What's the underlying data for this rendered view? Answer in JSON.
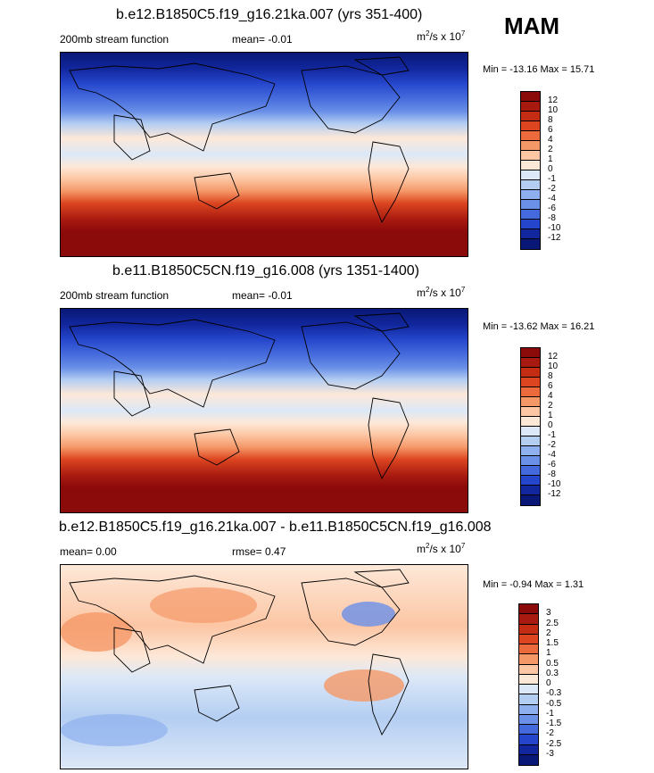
{
  "season": "MAM",
  "panels": [
    {
      "title": "b.e12.B1850C5.f19_g16.21ka.007 (yrs 351-400)",
      "left": "200mb stream function",
      "center": "mean=  -0.01",
      "units_base": "m",
      "units_mid": "/s x 10",
      "units_exp2": "2",
      "units_exp": "7",
      "minmax": "Min = -13.16 Max =  15.71",
      "labels": [
        "12",
        "10",
        "8",
        "6",
        "4",
        "2",
        "1",
        "0",
        "-1",
        "-2",
        "-4",
        "-6",
        "-8",
        "-10",
        "-12"
      ],
      "colors": [
        "#8b0a0a",
        "#a81a10",
        "#c42c14",
        "#dc4520",
        "#ec6a3c",
        "#f59868",
        "#fcc6a4",
        "#fde8d8",
        "#dce8f7",
        "#b4cef2",
        "#8fb0ee",
        "#6a90e8",
        "#4469dc",
        "#2546cc",
        "#12279e",
        "#091876"
      ]
    },
    {
      "title": "b.e11.B1850C5CN.f19_g16.008 (yrs 1351-1400)",
      "left": "200mb stream function",
      "center": "mean=  -0.01",
      "units_base": "m",
      "units_mid": "/s x 10",
      "units_exp2": "2",
      "units_exp": "7",
      "minmax": "Min = -13.62 Max =  16.21",
      "labels": [
        "12",
        "10",
        "8",
        "6",
        "4",
        "2",
        "1",
        "0",
        "-1",
        "-2",
        "-4",
        "-6",
        "-8",
        "-10",
        "-12"
      ],
      "colors": [
        "#8b0a0a",
        "#a81a10",
        "#c42c14",
        "#dc4520",
        "#ec6a3c",
        "#f59868",
        "#fcc6a4",
        "#fde8d8",
        "#dce8f7",
        "#b4cef2",
        "#8fb0ee",
        "#6a90e8",
        "#4469dc",
        "#2546cc",
        "#12279e",
        "#091876"
      ]
    },
    {
      "title": "b.e12.B1850C5.f19_g16.21ka.007 - b.e11.B1850C5CN.f19_g16.008",
      "left": "mean=   0.00",
      "center": "rmse=   0.47",
      "units_base": "m",
      "units_mid": "/s x 10",
      "units_exp2": "2",
      "units_exp": "7",
      "minmax": "Min =  -0.94 Max =   1.31",
      "labels": [
        "3",
        "2.5",
        "2",
        "1.5",
        "1",
        "0.5",
        "0.3",
        "0",
        "-0.3",
        "-0.5",
        "-1",
        "-1.5",
        "-2",
        "-2.5",
        "-3"
      ],
      "colors": [
        "#8b0a0a",
        "#a81a10",
        "#c42c14",
        "#dc4520",
        "#ec6a3c",
        "#f59868",
        "#fcc6a4",
        "#fde8d8",
        "#dce8f7",
        "#b4cef2",
        "#8fb0ee",
        "#6a90e8",
        "#4469dc",
        "#2546cc",
        "#12279e",
        "#091876"
      ]
    }
  ]
}
